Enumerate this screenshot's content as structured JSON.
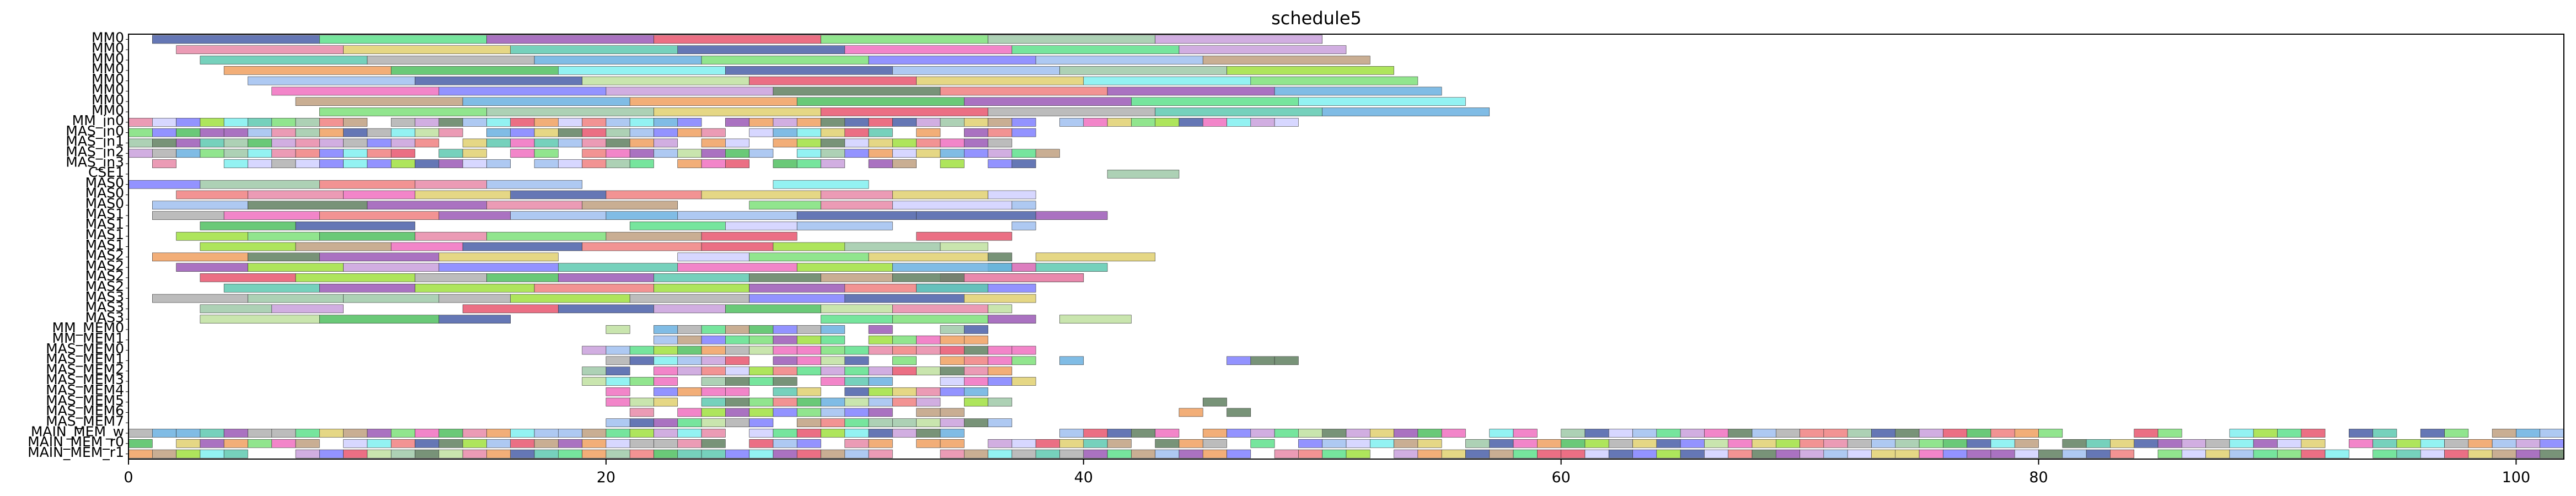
{
  "chart_data": {
    "type": "gantt",
    "title": "schedule5",
    "xlabel": "",
    "ylabel": "",
    "xlim": [
      0,
      102
    ],
    "xticks": [
      0,
      20,
      40,
      60,
      80,
      100
    ],
    "rows": [
      "MM0",
      "MM0",
      "MM0",
      "MM0",
      "MM0",
      "MM0",
      "MM0",
      "MM0",
      "MM_in0",
      "MAS_in0",
      "MAS_in1",
      "MAS_in2",
      "MAS_in3",
      "CSE1",
      "MAS0",
      "MAS0",
      "MAS0",
      "MAS1",
      "MAS1",
      "MAS1",
      "MAS1",
      "MAS2",
      "MAS2",
      "MAS2",
      "MAS2",
      "MAS3",
      "MAS3",
      "MAS3",
      "MM_MEM0",
      "MM_MEM1",
      "MAS_MEM0",
      "MAS_MEM1",
      "MAS_MEM2",
      "MAS_MEM3",
      "MAS_MEM4",
      "MAS_MEM5",
      "MAS_MEM6",
      "MAS_MEM7",
      "MAIN_MEM_w",
      "MAIN_MEM_r0",
      "MAIN_MEM_r1"
    ],
    "palette": [
      "#4a5fa8",
      "#5ee08c",
      "#9b59b6",
      "#e8566e",
      "#7ee07a",
      "#9fc9a8",
      "#c9a0dc",
      "#e88aa8",
      "#5ec9b0",
      "#f0a060",
      "#a0c0f0",
      "#e0d070",
      "#6ab0e0",
      "#50c060",
      "#c0e0a0",
      "#f070c0",
      "#8080ff",
      "#b0b0b0",
      "#f08080",
      "#80f0f0",
      "#c0a080",
      "#a0e040",
      "#608060",
      "#d0d0ff"
    ],
    "segments": [
      [
        0,
        1.0,
        8.0,
        0
      ],
      [
        0,
        8.0,
        15.0,
        1
      ],
      [
        0,
        15.0,
        22.0,
        2
      ],
      [
        0,
        22.0,
        29.0,
        3
      ],
      [
        0,
        29.0,
        36.0,
        4
      ],
      [
        0,
        36.0,
        43.0,
        5
      ],
      [
        0,
        43.0,
        50.0,
        6
      ],
      [
        1,
        2.0,
        9.0,
        7
      ],
      [
        1,
        9.0,
        16.0,
        11
      ],
      [
        1,
        16.0,
        23.0,
        8
      ],
      [
        1,
        23.0,
        30.0,
        0
      ],
      [
        1,
        30.0,
        37.0,
        15
      ],
      [
        1,
        37.0,
        44.0,
        1
      ],
      [
        1,
        44.0,
        51.0,
        6
      ],
      [
        2,
        3.0,
        10.0,
        8
      ],
      [
        2,
        10.0,
        17.0,
        17
      ],
      [
        2,
        17.0,
        24.0,
        12
      ],
      [
        2,
        24.0,
        31.0,
        4
      ],
      [
        2,
        31.0,
        38.0,
        16
      ],
      [
        2,
        38.0,
        45.0,
        10
      ],
      [
        2,
        45.0,
        52.0,
        20
      ],
      [
        3,
        4.0,
        11.0,
        9
      ],
      [
        3,
        11.0,
        18.0,
        13
      ],
      [
        3,
        18.0,
        25.0,
        19
      ],
      [
        3,
        25.0,
        32.0,
        0
      ],
      [
        3,
        32.0,
        39.0,
        10
      ],
      [
        3,
        39.0,
        46.0,
        5
      ],
      [
        3,
        46.0,
        53.0,
        21
      ],
      [
        4,
        5.0,
        12.0,
        10
      ],
      [
        4,
        12.0,
        19.0,
        0
      ],
      [
        4,
        19.0,
        26.0,
        14
      ],
      [
        4,
        26.0,
        33.0,
        3
      ],
      [
        4,
        33.0,
        40.0,
        11
      ],
      [
        4,
        40.0,
        47.0,
        19
      ],
      [
        4,
        47.0,
        54.0,
        4
      ],
      [
        5,
        6.0,
        13.0,
        15
      ],
      [
        5,
        13.0,
        20.0,
        16
      ],
      [
        5,
        20.0,
        27.0,
        6
      ],
      [
        5,
        27.0,
        34.0,
        22
      ],
      [
        5,
        34.0,
        41.0,
        18
      ],
      [
        5,
        41.0,
        48.0,
        2
      ],
      [
        5,
        48.0,
        55.0,
        12
      ],
      [
        6,
        7.0,
        14.0,
        20
      ],
      [
        6,
        14.0,
        21.0,
        12
      ],
      [
        6,
        21.0,
        28.0,
        9
      ],
      [
        6,
        28.0,
        35.0,
        13
      ],
      [
        6,
        35.0,
        42.0,
        2
      ],
      [
        6,
        42.0,
        49.0,
        1
      ],
      [
        6,
        49.0,
        56.0,
        19
      ],
      [
        7,
        8.0,
        15.0,
        4
      ],
      [
        7,
        15.0,
        22.0,
        5
      ],
      [
        7,
        22.0,
        29.0,
        11
      ],
      [
        7,
        29.0,
        36.0,
        3
      ],
      [
        7,
        36.0,
        43.0,
        17
      ],
      [
        7,
        43.0,
        50.0,
        8
      ],
      [
        7,
        50.0,
        57.0,
        12
      ],
      [
        13,
        41.0,
        44.0,
        5
      ],
      [
        21,
        38.0,
        43.0,
        11
      ],
      [
        22,
        36.0,
        41.0,
        8
      ],
      [
        23,
        34.0,
        40.0,
        15
      ],
      [
        24,
        33.0,
        38.0,
        16
      ],
      [
        27,
        39.0,
        42.0,
        14
      ],
      [
        31,
        46.0,
        47.0,
        16
      ],
      [
        31,
        47.0,
        48.0,
        22
      ],
      [
        31,
        48.0,
        49.0,
        22
      ],
      [
        35,
        45.0,
        46.0,
        22
      ],
      [
        36,
        44.0,
        45.0,
        9
      ],
      [
        36,
        46.0,
        47.0,
        22
      ]
    ]
  }
}
